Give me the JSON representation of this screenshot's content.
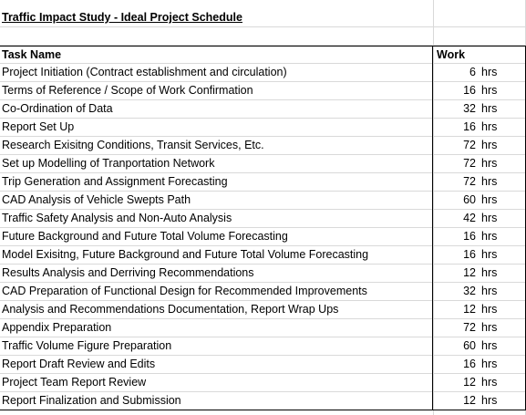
{
  "title": "Traffic Impact Study - Ideal Project Schedule",
  "headers": {
    "task": "Task Name",
    "work": "Work"
  },
  "rows": [
    {
      "task": "Project Initiation (Contract establishment and circulation)",
      "value": "6",
      "unit": "hrs"
    },
    {
      "task": "Terms of Reference / Scope of Work Confirmation",
      "value": "16",
      "unit": "hrs"
    },
    {
      "task": "Co-Ordination of Data",
      "value": "32",
      "unit": "hrs"
    },
    {
      "task": "Report Set Up",
      "value": "16",
      "unit": "hrs"
    },
    {
      "task": "Research Exisitng Conditions, Transit Services, Etc.",
      "value": "72",
      "unit": "hrs"
    },
    {
      "task": "Set up Modelling of Tranportation Network",
      "value": "72",
      "unit": "hrs"
    },
    {
      "task": "Trip Generation and Assignment Forecasting",
      "value": "72",
      "unit": "hrs"
    },
    {
      "task": "CAD Analysis of Vehicle Swepts Path",
      "value": "60",
      "unit": "hrs"
    },
    {
      "task": "Traffic Safety Analysis and Non-Auto Analysis",
      "value": "42",
      "unit": "hrs"
    },
    {
      "task": "Future Background and Future Total Volume Forecasting",
      "value": "16",
      "unit": "hrs"
    },
    {
      "task": "Model Exisitng, Future Background and Future Total Volume Forecasting",
      "value": "16",
      "unit": "hrs"
    },
    {
      "task": "Results Analysis and Derriving Recommendations",
      "value": "12",
      "unit": "hrs"
    },
    {
      "task": "CAD Preparation of Functional Design for Recommended Improvements",
      "value": "32",
      "unit": "hrs"
    },
    {
      "task": "Analysis and Recommendations Documentation, Report Wrap Ups",
      "value": "12",
      "unit": "hrs"
    },
    {
      "task": "Appendix Preparation",
      "value": "72",
      "unit": "hrs"
    },
    {
      "task": "Traffic Volume Figure Preparation",
      "value": "60",
      "unit": "hrs"
    },
    {
      "task": "Report Draft Review and Edits",
      "value": "16",
      "unit": "hrs"
    },
    {
      "task": "Project Team Report Review",
      "value": "12",
      "unit": "hrs"
    },
    {
      "task": "Report Finalization and Submission",
      "value": "12",
      "unit": "hrs"
    }
  ]
}
